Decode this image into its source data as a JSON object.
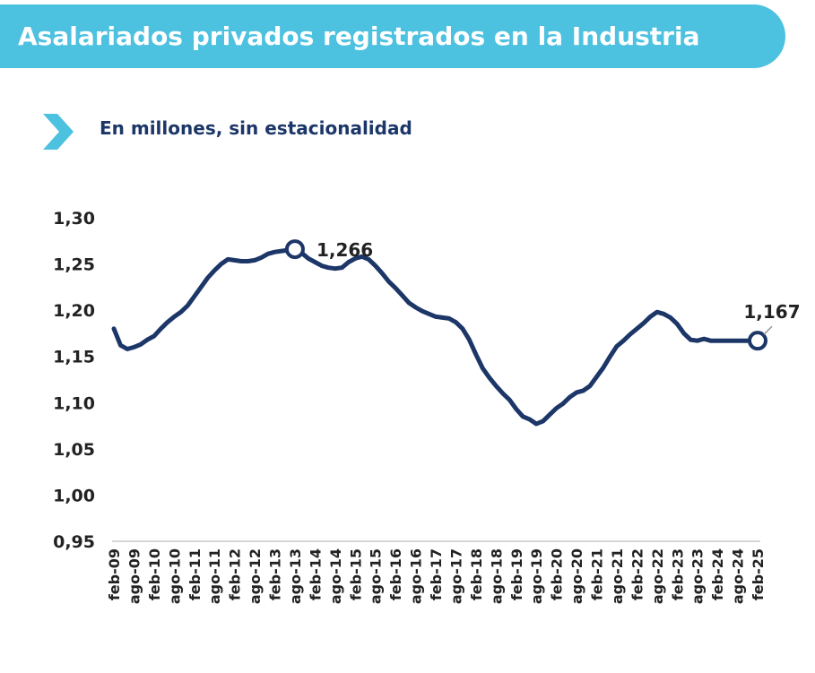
{
  "header": {
    "title": "Asalariados privados registrados en la Industria"
  },
  "subtitle": "En millones, sin estacionalidad",
  "colors": {
    "banner": "#4cc1e0",
    "line": "#1c3668",
    "text": "#222222",
    "subtitle": "#1c3668"
  },
  "chart_data": {
    "type": "line",
    "title": "Asalariados privados registrados en la Industria",
    "subtitle": "En millones, sin estacionalidad",
    "xlabel": "",
    "ylabel": "",
    "ylim": [
      0.95,
      1.3
    ],
    "yticks": [
      0.95,
      1.0,
      1.05,
      1.1,
      1.15,
      1.2,
      1.25,
      1.3
    ],
    "ytick_labels": [
      "0,95",
      "1,00",
      "1,05",
      "1,10",
      "1,15",
      "1,20",
      "1,25",
      "1,30"
    ],
    "xtick_labels": [
      "feb-09",
      "ago-09",
      "feb-10",
      "ago-10",
      "feb-11",
      "ago-11",
      "feb-12",
      "ago-12",
      "feb-13",
      "ago-13",
      "feb-14",
      "ago-14",
      "feb-15",
      "ago-15",
      "feb-16",
      "ago-16",
      "feb-17",
      "ago-17",
      "feb-18",
      "ago-18",
      "feb-19",
      "ago-19",
      "feb-20",
      "ago-20",
      "feb-21",
      "ago-21",
      "feb-22",
      "ago-22",
      "feb-23",
      "ago-23",
      "feb-24",
      "ago-24",
      "feb-25"
    ],
    "grid": false,
    "series": [
      {
        "points": [
          [
            "feb-09",
            1.18
          ],
          [
            "abr-09",
            1.162
          ],
          [
            "jun-09",
            1.158
          ],
          [
            "ago-09",
            1.16
          ],
          [
            "oct-09",
            1.163
          ],
          [
            "dic-09",
            1.168
          ],
          [
            "feb-10",
            1.172
          ],
          [
            "abr-10",
            1.18
          ],
          [
            "jun-10",
            1.187
          ],
          [
            "ago-10",
            1.193
          ],
          [
            "oct-10",
            1.198
          ],
          [
            "dic-10",
            1.205
          ],
          [
            "feb-11",
            1.215
          ],
          [
            "abr-11",
            1.225
          ],
          [
            "jun-11",
            1.235
          ],
          [
            "ago-11",
            1.243
          ],
          [
            "oct-11",
            1.25
          ],
          [
            "dic-11",
            1.255
          ],
          [
            "feb-12",
            1.254
          ],
          [
            "abr-12",
            1.253
          ],
          [
            "jun-12",
            1.253
          ],
          [
            "ago-12",
            1.254
          ],
          [
            "oct-12",
            1.257
          ],
          [
            "dic-12",
            1.261
          ],
          [
            "feb-13",
            1.263
          ],
          [
            "abr-13",
            1.264
          ],
          [
            "jun-13",
            1.265
          ],
          [
            "ago-13",
            1.266
          ],
          [
            "oct-13",
            1.262
          ],
          [
            "dic-13",
            1.256
          ],
          [
            "feb-14",
            1.252
          ],
          [
            "abr-14",
            1.248
          ],
          [
            "jun-14",
            1.246
          ],
          [
            "ago-14",
            1.245
          ],
          [
            "oct-14",
            1.246
          ],
          [
            "dic-14",
            1.252
          ],
          [
            "feb-15",
            1.256
          ],
          [
            "abr-15",
            1.258
          ],
          [
            "jun-15",
            1.255
          ],
          [
            "ago-15",
            1.248
          ],
          [
            "oct-15",
            1.24
          ],
          [
            "dic-15",
            1.231
          ],
          [
            "feb-16",
            1.224
          ],
          [
            "abr-16",
            1.216
          ],
          [
            "jun-16",
            1.208
          ],
          [
            "ago-16",
            1.203
          ],
          [
            "oct-16",
            1.199
          ],
          [
            "dic-16",
            1.196
          ],
          [
            "feb-17",
            1.193
          ],
          [
            "abr-17",
            1.192
          ],
          [
            "jun-17",
            1.191
          ],
          [
            "ago-17",
            1.187
          ],
          [
            "oct-17",
            1.18
          ],
          [
            "dic-17",
            1.168
          ],
          [
            "feb-18",
            1.152
          ],
          [
            "abr-18",
            1.137
          ],
          [
            "jun-18",
            1.127
          ],
          [
            "ago-18",
            1.118
          ],
          [
            "oct-18",
            1.11
          ],
          [
            "dic-18",
            1.103
          ],
          [
            "feb-19",
            1.093
          ],
          [
            "abr-19",
            1.085
          ],
          [
            "jun-19",
            1.082
          ],
          [
            "ago-19",
            1.077
          ],
          [
            "oct-19",
            1.08
          ],
          [
            "dic-19",
            1.087
          ],
          [
            "feb-20",
            1.094
          ],
          [
            "abr-20",
            1.099
          ],
          [
            "jun-20",
            1.106
          ],
          [
            "ago-20",
            1.111
          ],
          [
            "oct-20",
            1.113
          ],
          [
            "dic-20",
            1.118
          ],
          [
            "feb-21",
            1.128
          ],
          [
            "abr-21",
            1.138
          ],
          [
            "jun-21",
            1.15
          ],
          [
            "ago-21",
            1.161
          ],
          [
            "oct-21",
            1.167
          ],
          [
            "dic-21",
            1.174
          ],
          [
            "feb-22",
            1.18
          ],
          [
            "abr-22",
            1.186
          ],
          [
            "jun-22",
            1.193
          ],
          [
            "ago-22",
            1.198
          ],
          [
            "oct-22",
            1.196
          ],
          [
            "dic-22",
            1.192
          ],
          [
            "feb-23",
            1.185
          ],
          [
            "abr-23",
            1.175
          ],
          [
            "jun-23",
            1.168
          ],
          [
            "ago-23",
            1.167
          ],
          [
            "oct-23",
            1.169
          ],
          [
            "dic-23",
            1.167
          ],
          [
            "feb-24",
            1.167
          ]
        ]
      }
    ],
    "annotations": [
      {
        "label": "1,266",
        "x": "ago-13",
        "y": 1.266
      },
      {
        "label": "1,167",
        "x": "feb-25",
        "y": 1.167
      }
    ]
  }
}
